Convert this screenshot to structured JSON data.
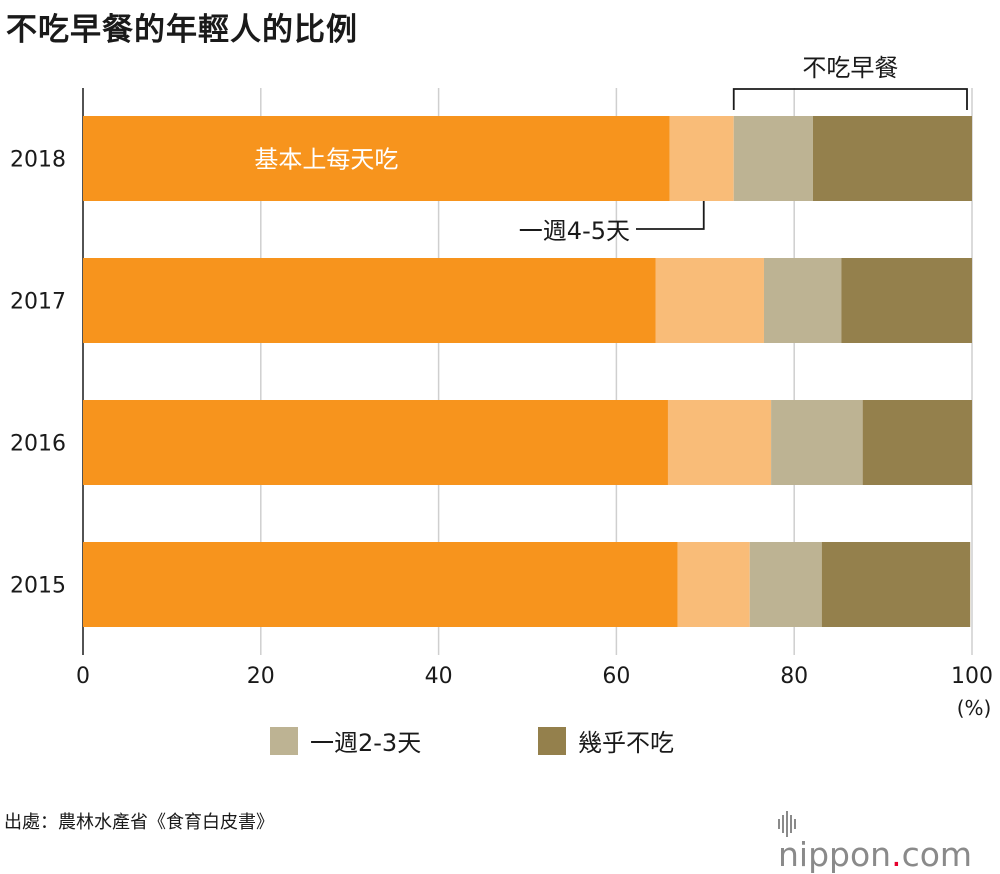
{
  "chart_data": {
    "type": "bar",
    "orientation": "horizontal",
    "stacked": true,
    "title": "不吃早餐的年輕人的比例",
    "categories": [
      "2018",
      "2017",
      "2016",
      "2015"
    ],
    "series": [
      {
        "name": "基本上每天吃",
        "color": "#f7941d",
        "values": [
          66.0,
          64.4,
          65.8,
          66.9
        ]
      },
      {
        "name": "一週4-5天",
        "color": "#f9bc78",
        "values": [
          7.2,
          12.2,
          11.6,
          8.1
        ]
      },
      {
        "name": "一週2-3天",
        "color": "#bdb393",
        "values": [
          8.9,
          8.7,
          10.3,
          8.1
        ]
      },
      {
        "name": "幾乎不吃",
        "color": "#94804c",
        "values": [
          17.9,
          14.7,
          12.3,
          16.7
        ]
      }
    ],
    "xlim": [
      0,
      100
    ],
    "xticks": [
      0,
      20,
      40,
      60,
      80,
      100
    ],
    "xunit": "(%)",
    "grid": true,
    "bracket_label": "不吃早餐",
    "legend": [
      "一週2-3天",
      "幾乎不吃"
    ],
    "legend_position": "bottom"
  },
  "source": "出處：農林水產省《食育白皮書》",
  "brand": {
    "name": "nippon",
    "dot": ".",
    "tld": "com"
  }
}
